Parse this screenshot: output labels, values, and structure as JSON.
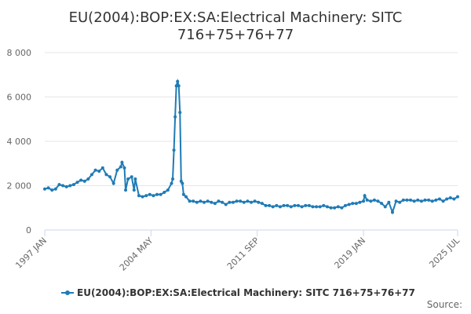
{
  "chart_data": {
    "type": "line",
    "title": "EU(2004):BOP:EX:SA:Electrical Machinery: SITC 716+75+76+77",
    "source": "Source:",
    "x": [
      "1997-01",
      "1997-04",
      "1997-07",
      "1997-10",
      "1998-01",
      "1998-04",
      "1998-07",
      "1998-10",
      "1999-01",
      "1999-04",
      "1999-07",
      "1999-10",
      "2000-01",
      "2000-04",
      "2000-07",
      "2000-10",
      "2001-01",
      "2001-04",
      "2001-07",
      "2001-10",
      "2002-01",
      "2002-04",
      "2002-05",
      "2002-07",
      "2002-08",
      "2002-10",
      "2003-01",
      "2003-03",
      "2003-04",
      "2003-07",
      "2003-10",
      "2004-01",
      "2004-04",
      "2004-07",
      "2004-10",
      "2005-01",
      "2005-04",
      "2005-07",
      "2005-10",
      "2005-11",
      "2005-12",
      "2006-01",
      "2006-02",
      "2006-03",
      "2006-04",
      "2006-05",
      "2006-06",
      "2006-07",
      "2006-08",
      "2006-10",
      "2007-01",
      "2007-04",
      "2007-07",
      "2007-10",
      "2008-01",
      "2008-04",
      "2008-07",
      "2008-10",
      "2009-01",
      "2009-04",
      "2009-07",
      "2009-10",
      "2010-01",
      "2010-04",
      "2010-07",
      "2010-10",
      "2011-01",
      "2011-04",
      "2011-07",
      "2011-10",
      "2012-01",
      "2012-04",
      "2012-07",
      "2012-10",
      "2013-01",
      "2013-04",
      "2013-07",
      "2013-10",
      "2014-01",
      "2014-04",
      "2014-07",
      "2014-10",
      "2015-01",
      "2015-04",
      "2015-07",
      "2015-10",
      "2016-01",
      "2016-04",
      "2016-07",
      "2016-10",
      "2017-01",
      "2017-04",
      "2017-07",
      "2017-10",
      "2018-01",
      "2018-04",
      "2018-07",
      "2018-10",
      "2019-01",
      "2019-02",
      "2019-04",
      "2019-07",
      "2019-10",
      "2020-01",
      "2020-04",
      "2020-07",
      "2020-10",
      "2021-01",
      "2021-04",
      "2021-07",
      "2021-10",
      "2022-01",
      "2022-04",
      "2022-07",
      "2022-10",
      "2023-01",
      "2023-04",
      "2023-07",
      "2023-10",
      "2024-01",
      "2024-04",
      "2024-07",
      "2024-10",
      "2025-01",
      "2025-04",
      "2025-07"
    ],
    "series": [
      {
        "name": "EU(2004):BOP:EX:SA:Electrical Machinery: SITC 716+75+76+77",
        "color": "#1f7bb6",
        "values": [
          1850,
          1900,
          1800,
          1850,
          2050,
          2000,
          1950,
          2000,
          2050,
          2150,
          2250,
          2200,
          2300,
          2500,
          2700,
          2650,
          2800,
          2500,
          2400,
          2100,
          2700,
          2850,
          3050,
          2800,
          1800,
          2300,
          2400,
          1800,
          2300,
          1550,
          1500,
          1550,
          1600,
          1550,
          1600,
          1600,
          1700,
          1800,
          2100,
          2300,
          3600,
          5100,
          6500,
          6700,
          6500,
          5300,
          2200,
          2100,
          1600,
          1500,
          1300,
          1300,
          1250,
          1300,
          1250,
          1300,
          1250,
          1200,
          1300,
          1250,
          1150,
          1250,
          1250,
          1300,
          1300,
          1250,
          1300,
          1250,
          1300,
          1250,
          1200,
          1100,
          1100,
          1050,
          1100,
          1050,
          1100,
          1100,
          1050,
          1100,
          1100,
          1050,
          1100,
          1100,
          1050,
          1050,
          1050,
          1100,
          1050,
          1000,
          1000,
          1050,
          1000,
          1100,
          1150,
          1200,
          1200,
          1250,
          1300,
          1550,
          1350,
          1300,
          1350,
          1300,
          1200,
          1050,
          1250,
          800,
          1300,
          1250,
          1350,
          1350,
          1350,
          1300,
          1350,
          1300,
          1350,
          1350,
          1300,
          1350,
          1400,
          1300,
          1400,
          1450,
          1400,
          1500
        ]
      }
    ],
    "xlim": [
      "1997-01",
      "2025-07"
    ],
    "xticks": [
      {
        "value": "1997-01",
        "label": "1997 JAN"
      },
      {
        "value": "2004-05",
        "label": "2004 MAY"
      },
      {
        "value": "2011-09",
        "label": "2011 SEP"
      },
      {
        "value": "2019-01",
        "label": "2019 JAN"
      },
      {
        "value": "2025-07",
        "label": "2025 JUL"
      }
    ],
    "ylim": [
      0,
      8000
    ],
    "yticks": [
      0,
      {
        "value": 2000,
        "label": "2 000"
      },
      {
        "value": 4000,
        "label": "4 000"
      },
      {
        "value": 6000,
        "label": "6 000"
      },
      {
        "value": 8000,
        "label": "8 000"
      }
    ],
    "grid": true,
    "legend": "bottom"
  }
}
